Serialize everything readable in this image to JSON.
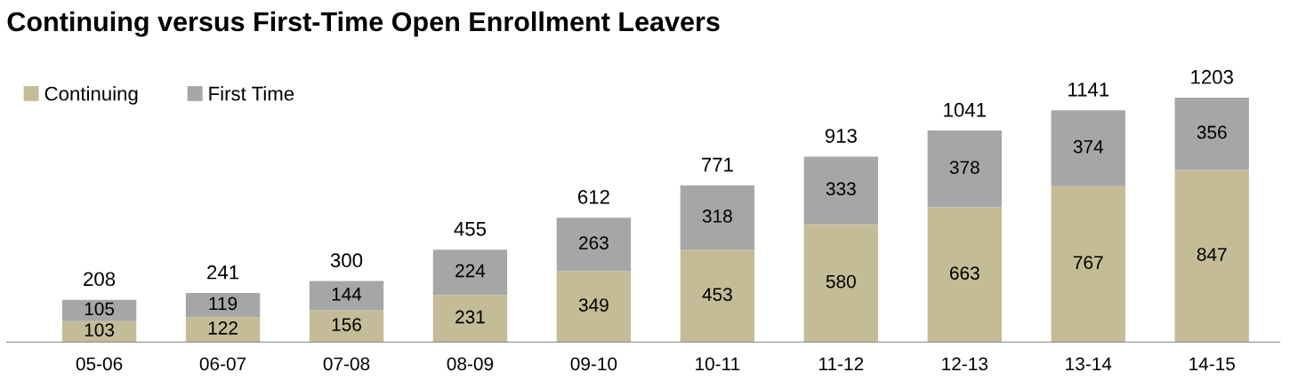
{
  "chart_data": {
    "type": "bar",
    "title": "Continuing versus First-Time Open Enrollment Leavers",
    "categories": [
      "05-06",
      "06-07",
      "07-08",
      "08-09",
      "09-10",
      "10-11",
      "11-12",
      "12-13",
      "13-14",
      "14-15"
    ],
    "stacked": true,
    "data_labels": true,
    "legend": "top left",
    "series": [
      {
        "name": "Continuing",
        "color": "#c4bc96",
        "values": [
          103,
          122,
          156,
          231,
          349,
          453,
          580,
          663,
          767,
          847
        ]
      },
      {
        "name": "First Time",
        "color": "#a6a6a6",
        "values": [
          105,
          119,
          144,
          224,
          263,
          318,
          333,
          378,
          374,
          356
        ]
      }
    ],
    "totals": [
      "208",
      "241",
      "300",
      "455",
      "612",
      "771",
      "913",
      "1041",
      "1141",
      "1203"
    ]
  }
}
